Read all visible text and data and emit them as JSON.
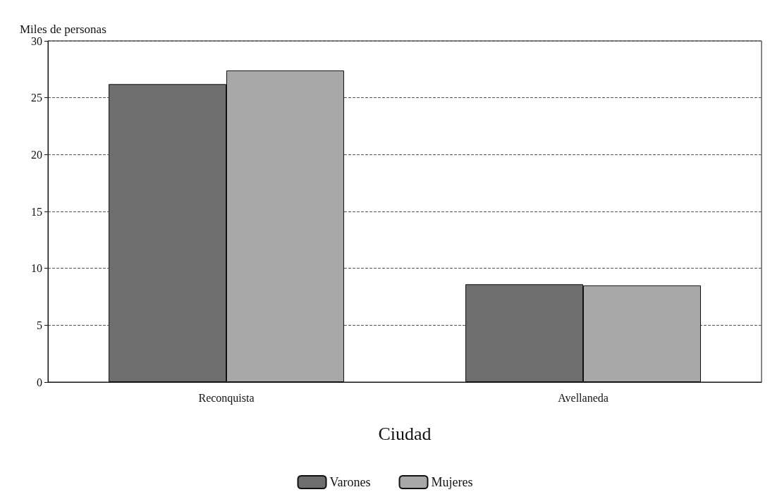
{
  "chart_data": {
    "type": "bar",
    "xlabel": "Ciudad",
    "ylabel": "Miles de personas",
    "categories": [
      "Reconquista",
      "Avellaneda"
    ],
    "series": [
      {
        "name": "Varones",
        "color": "#6e6e6e",
        "values": [
          26.2,
          8.6
        ]
      },
      {
        "name": "Mujeres",
        "color": "#a8a8a8",
        "values": [
          27.4,
          8.5
        ]
      }
    ],
    "ylim": [
      0,
      30
    ],
    "yticks": [
      0,
      5,
      10,
      15,
      20,
      25,
      30
    ],
    "grid": "y",
    "legend": "bottom"
  }
}
